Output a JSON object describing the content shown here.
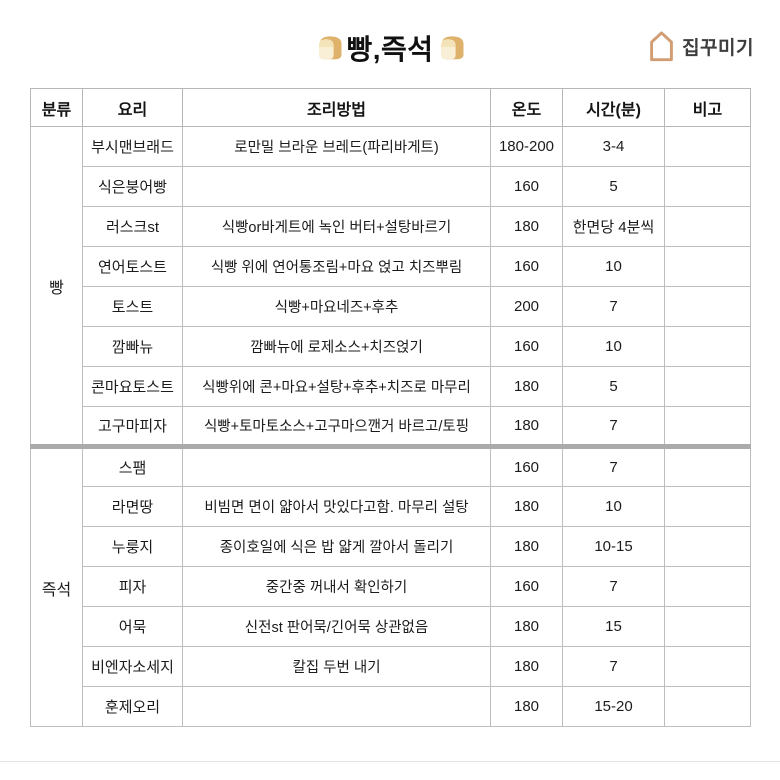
{
  "page": {
    "title": "빵,즉석",
    "title_icon": "bread-icon"
  },
  "logo": {
    "label": "집꾸미기",
    "icon": "house-outline-icon",
    "icon_color": "#d29d72"
  },
  "colors": {
    "cell_border": "#bdbdbd",
    "section_divider": "#ababab",
    "text": "#1c1c1c",
    "logo_text": "#3d3d3d"
  },
  "table": {
    "headers": [
      "분류",
      "요리",
      "조리방법",
      "온도",
      "시간(분)",
      "비고"
    ],
    "sections": [
      {
        "category": "빵",
        "rows": [
          {
            "dish": "부시맨브래드",
            "method": "로만밀 브라운 브레드(파리바게트)",
            "temp": "180-200",
            "time": "3-4",
            "note": ""
          },
          {
            "dish": "식은붕어빵",
            "method": "",
            "temp": "160",
            "time": "5",
            "note": ""
          },
          {
            "dish": "러스크st",
            "method": "식빵or바게트에 녹인 버터+설탕바르기",
            "temp": "180",
            "time": "한면당 4분씩",
            "note": ""
          },
          {
            "dish": "연어토스트",
            "method": "식빵 위에 연어통조림+마요 얹고 치즈뿌림",
            "temp": "160",
            "time": "10",
            "note": ""
          },
          {
            "dish": "토스트",
            "method": "식빵+마요네즈+후추",
            "temp": "200",
            "time": "7",
            "note": ""
          },
          {
            "dish": "깜빠뉴",
            "method": "깜빠뉴에 로제소스+치즈얹기",
            "temp": "160",
            "time": "10",
            "note": ""
          },
          {
            "dish": "콘마요토스트",
            "method": "식빵위에 콘+마요+설탕+후추+치즈로 마무리",
            "temp": "180",
            "time": "5",
            "note": ""
          },
          {
            "dish": "고구마피자",
            "method": "식빵+토마토소스+고구마으깬거 바르고/토핑",
            "temp": "180",
            "time": "7",
            "note": ""
          }
        ]
      },
      {
        "category": "즉석",
        "rows": [
          {
            "dish": "스팸",
            "method": "",
            "temp": "160",
            "time": "7",
            "note": ""
          },
          {
            "dish": "라면땅",
            "method": "비빔면 면이 얇아서 맛있다고함. 마무리 설탕",
            "temp": "180",
            "time": "10",
            "note": ""
          },
          {
            "dish": "누룽지",
            "method": "종이호일에 식은 밥 얇게 깔아서 돌리기",
            "temp": "180",
            "time": "10-15",
            "note": ""
          },
          {
            "dish": "피자",
            "method": "중간중 꺼내서 확인하기",
            "temp": "160",
            "time": "7",
            "note": ""
          },
          {
            "dish": "어묵",
            "method": "신전st 판어묵/긴어묵 상관없음",
            "temp": "180",
            "time": "15",
            "note": ""
          },
          {
            "dish": "비엔자소세지",
            "method": "칼집 두번 내기",
            "temp": "180",
            "time": "7",
            "note": ""
          },
          {
            "dish": "훈제오리",
            "method": "",
            "temp": "180",
            "time": "15-20",
            "note": ""
          }
        ]
      }
    ]
  }
}
